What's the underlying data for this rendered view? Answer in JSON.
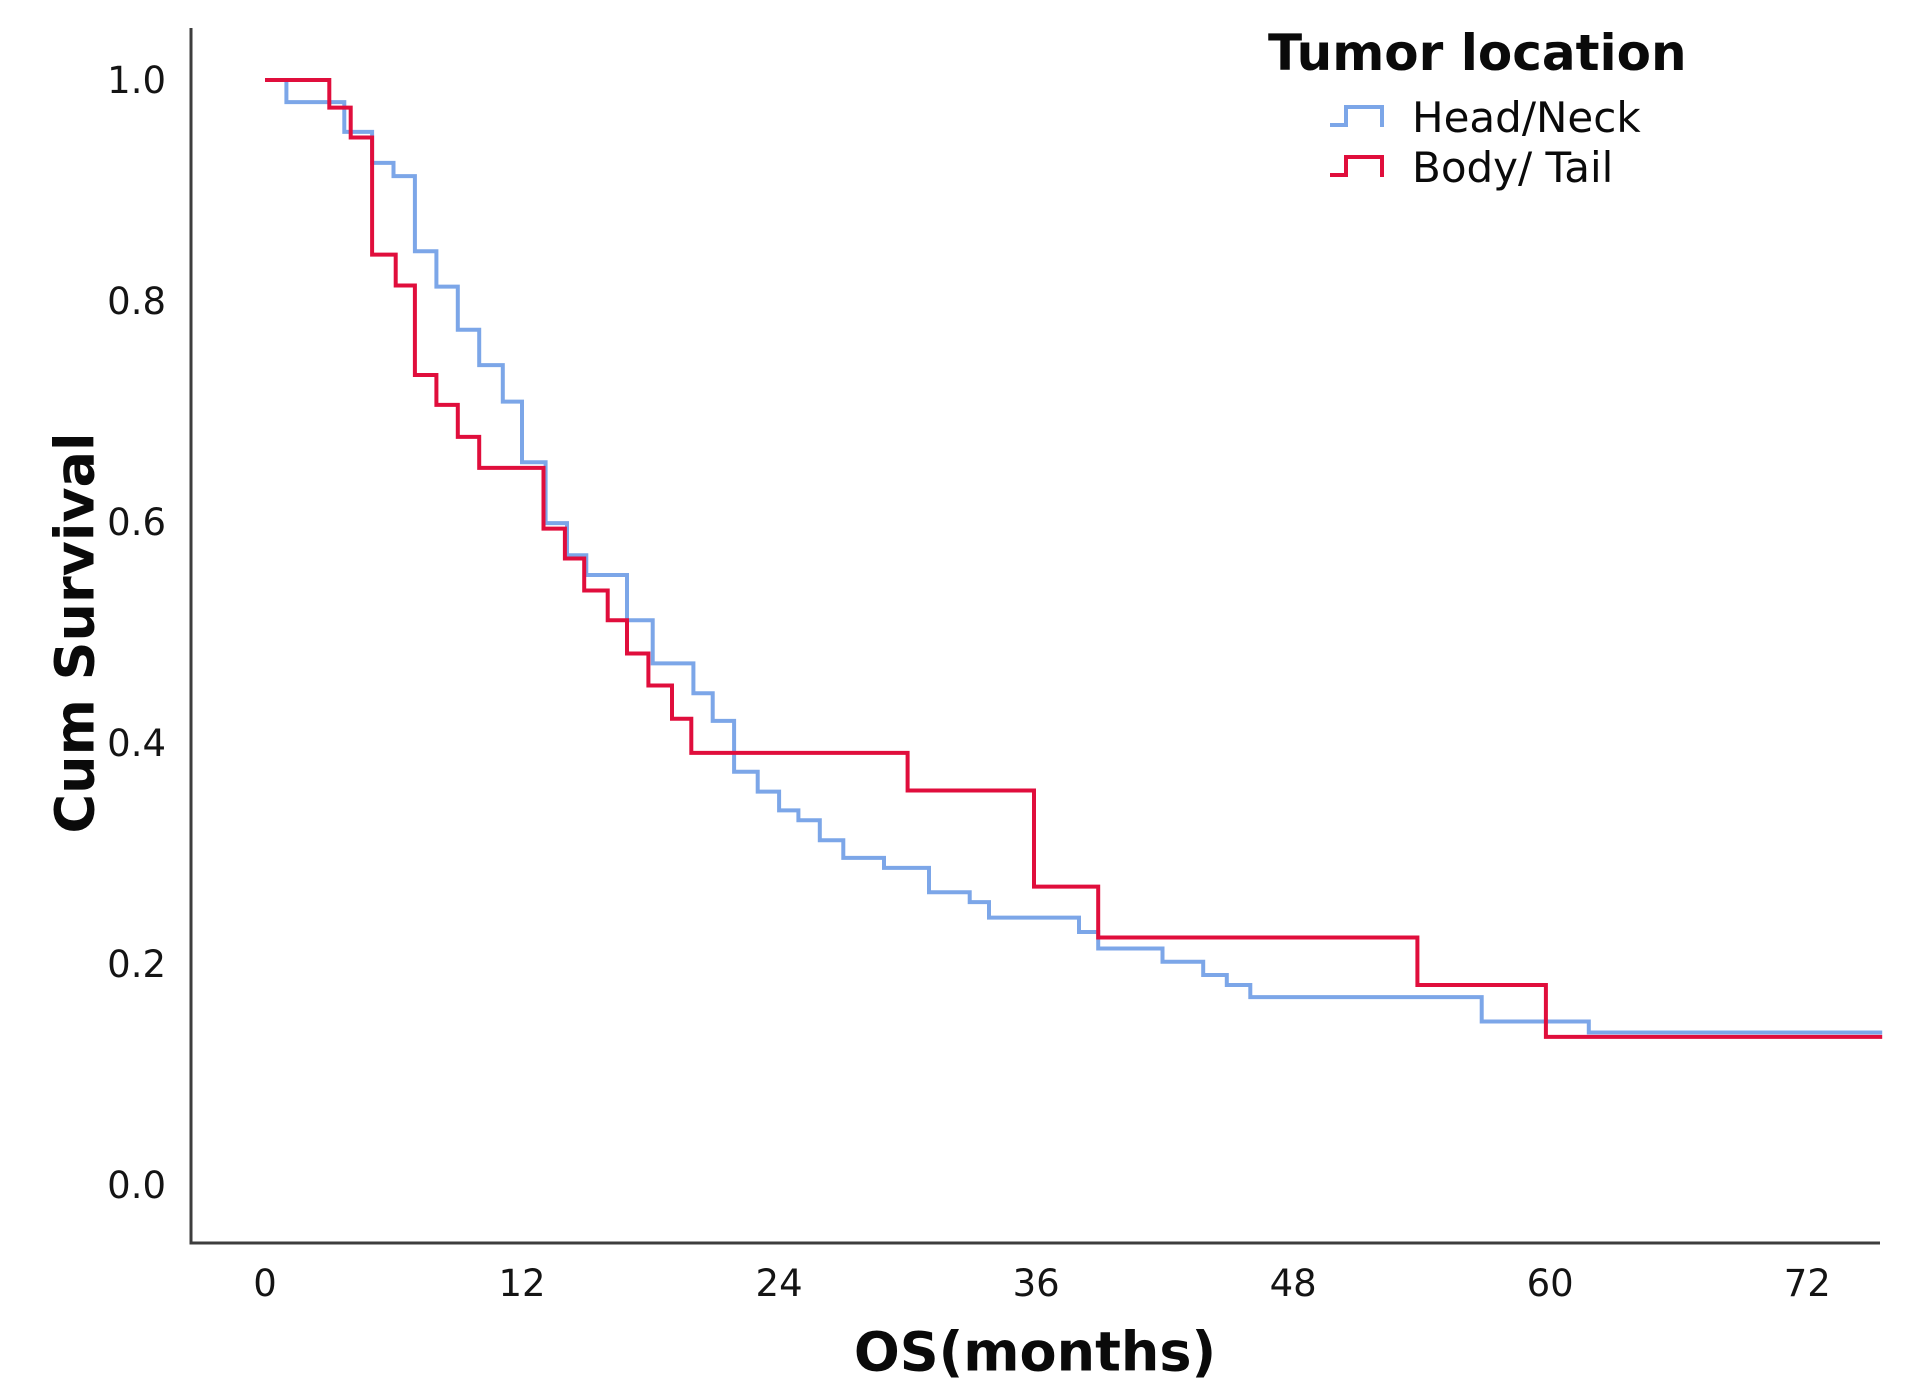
{
  "chart_data": {
    "type": "line",
    "style": "kaplan_meier_step",
    "title": "",
    "xlabel": "OS(months)",
    "ylabel": "Cum Survival",
    "x_ticks": [
      0,
      12,
      24,
      36,
      48,
      60,
      72
    ],
    "y_ticks": [
      0.0,
      0.2,
      0.4,
      0.6,
      0.8,
      1.0
    ],
    "xlim": [
      -3.5,
      76.5
    ],
    "ylim": [
      -0.053,
      1.046
    ],
    "grid": false,
    "axis_color": "#3d3d3d",
    "legend": {
      "title": "Tumor location",
      "position": "top-right",
      "items": [
        "Head/Neck",
        "Body/ Tail"
      ]
    },
    "series": [
      {
        "name": "Head/Neck",
        "color": "#7CA6E8",
        "end_month": 75.5,
        "steps": [
          [
            0,
            1.0
          ],
          [
            1,
            0.98
          ],
          [
            3.7,
            0.953
          ],
          [
            5,
            0.925
          ],
          [
            6,
            0.913
          ],
          [
            7,
            0.845
          ],
          [
            8,
            0.813
          ],
          [
            9,
            0.774
          ],
          [
            10,
            0.742
          ],
          [
            11.1,
            0.709
          ],
          [
            12,
            0.654
          ],
          [
            13.1,
            0.599
          ],
          [
            14.1,
            0.57
          ],
          [
            15,
            0.552
          ],
          [
            16.9,
            0.511
          ],
          [
            18.1,
            0.472
          ],
          [
            20,
            0.445
          ],
          [
            20.9,
            0.42
          ],
          [
            21.9,
            0.374
          ],
          [
            23,
            0.356
          ],
          [
            24,
            0.339
          ],
          [
            24.9,
            0.33
          ],
          [
            25.9,
            0.312
          ],
          [
            27,
            0.296
          ],
          [
            28.9,
            0.287
          ],
          [
            31,
            0.265
          ],
          [
            32.9,
            0.256
          ],
          [
            33.8,
            0.242
          ],
          [
            38,
            0.229
          ],
          [
            38.9,
            0.214
          ],
          [
            41.9,
            0.202
          ],
          [
            43.8,
            0.19
          ],
          [
            44.9,
            0.181
          ],
          [
            46,
            0.17
          ],
          [
            56.8,
            0.148
          ],
          [
            61.8,
            0.138
          ]
        ]
      },
      {
        "name": "Body/ Tail",
        "color": "#E00E3C",
        "end_month": 75.5,
        "steps": [
          [
            0,
            1.0
          ],
          [
            3,
            0.975
          ],
          [
            4,
            0.948
          ],
          [
            5,
            0.842
          ],
          [
            6.1,
            0.814
          ],
          [
            7,
            0.733
          ],
          [
            8,
            0.706
          ],
          [
            9,
            0.677
          ],
          [
            10,
            0.649
          ],
          [
            13,
            0.594
          ],
          [
            14,
            0.567
          ],
          [
            14.9,
            0.538
          ],
          [
            16,
            0.511
          ],
          [
            16.9,
            0.481
          ],
          [
            17.9,
            0.452
          ],
          [
            19,
            0.422
          ],
          [
            19.9,
            0.391
          ],
          [
            30,
            0.357
          ],
          [
            35.9,
            0.27
          ],
          [
            38.9,
            0.224
          ],
          [
            53.8,
            0.181
          ],
          [
            59.8,
            0.134
          ]
        ]
      }
    ]
  }
}
